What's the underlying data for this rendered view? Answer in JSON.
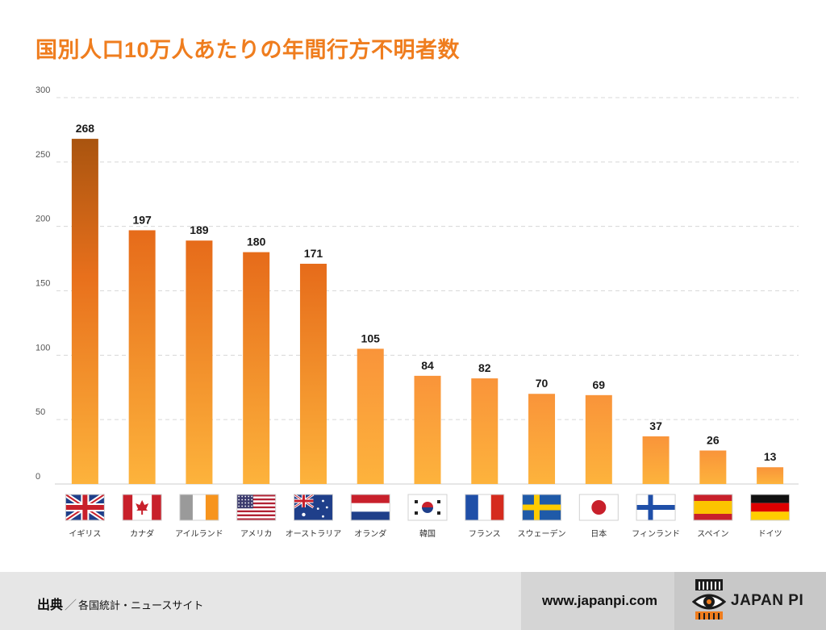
{
  "title": "国別人口10万人あたりの年間行方不明者数",
  "chart_data": {
    "type": "bar",
    "title": "国別人口10万人あたりの年間行方不明者数",
    "xlabel": "",
    "ylabel": "",
    "ylim": [
      0,
      300
    ],
    "yticks": [
      0,
      50,
      100,
      150,
      200,
      250,
      300
    ],
    "categories": [
      "イギリス",
      "カナダ",
      "アイルランド",
      "アメリカ",
      "オーストラリア",
      "オランダ",
      "韓国",
      "フランス",
      "スウェーデン",
      "日本",
      "フィンランド",
      "スペイン",
      "ドイツ"
    ],
    "flags": [
      "uk",
      "canada",
      "ireland",
      "usa",
      "australia",
      "netherlands",
      "korea",
      "france",
      "sweden",
      "japan",
      "finland",
      "spain",
      "germany"
    ],
    "values": [
      268,
      197,
      189,
      180,
      171,
      105,
      84,
      82,
      70,
      69,
      37,
      26,
      13
    ],
    "grid": true
  },
  "footer": {
    "source_label": "出典",
    "source_sep": "／",
    "source_text": "各国統計・ニュースサイト",
    "website": "www.japanpi.com",
    "brand": "JAPAN PI"
  },
  "colors": {
    "accent": "#ef7d1e",
    "bar_top": "#e66b1a",
    "bar_bottom": "#fdb33c",
    "bar_top_dark": "#a9540f"
  }
}
